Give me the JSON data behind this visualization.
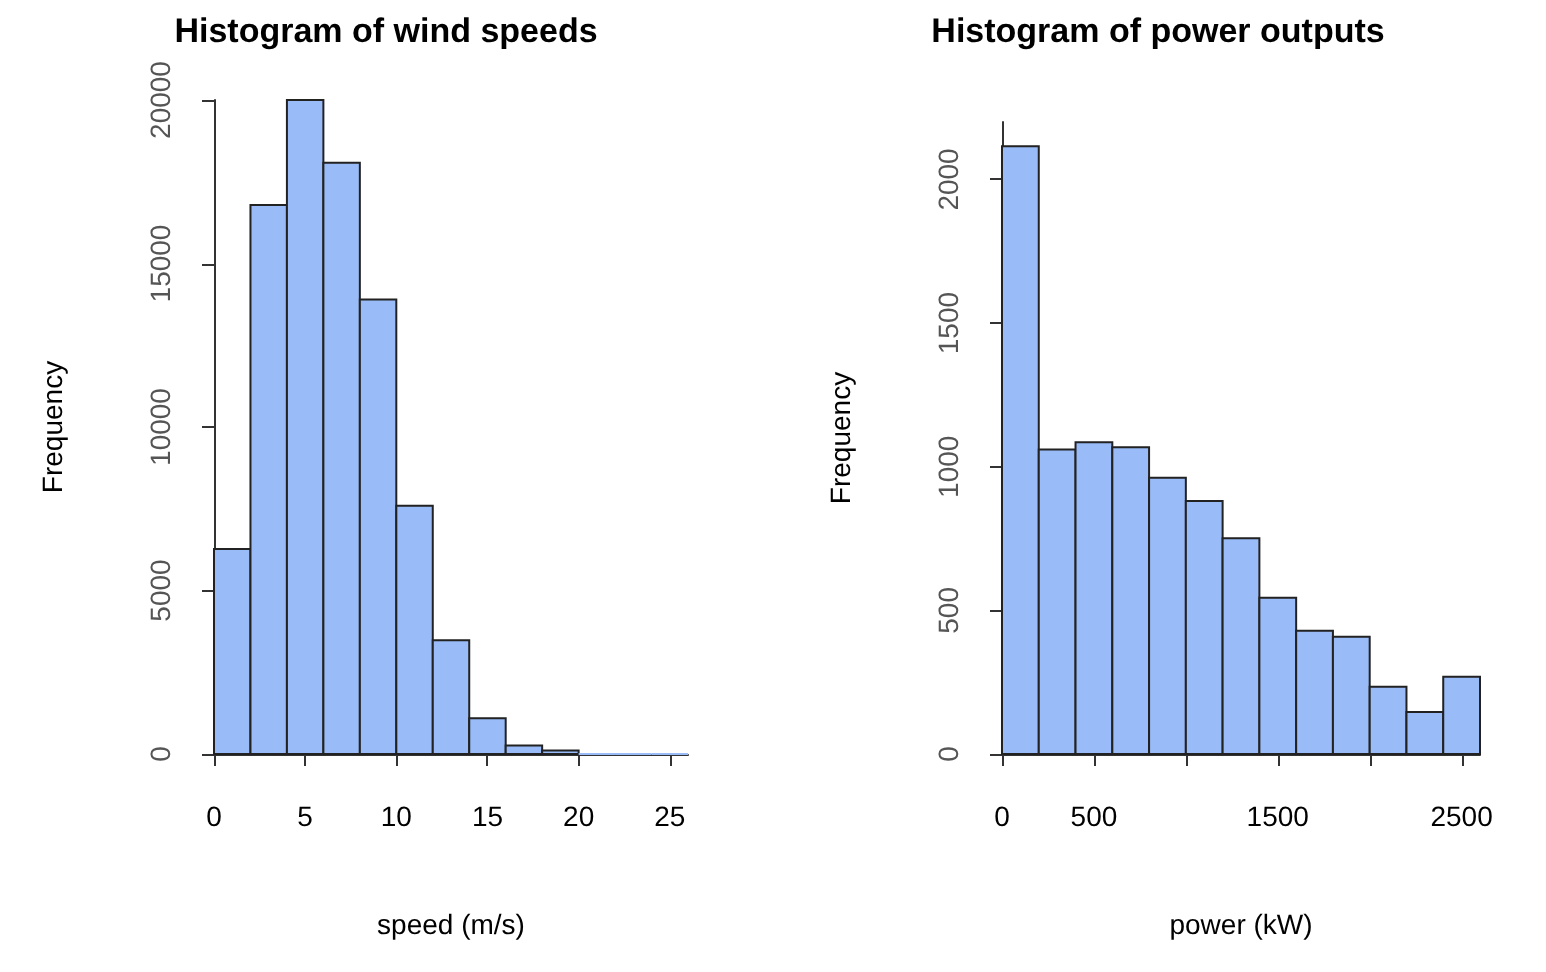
{
  "chart_data": [
    {
      "type": "histogram",
      "title": "Histogram of wind speeds",
      "xlabel": "speed (m/s)",
      "ylabel": "Frequency",
      "color": "#99bbf7",
      "bins": [
        0,
        2,
        4,
        6,
        8,
        10,
        12,
        14,
        16,
        18,
        20,
        22,
        24,
        26
      ],
      "values": [
        6270,
        16790,
        20000,
        18080,
        13900,
        7590,
        3480,
        1090,
        260,
        110,
        0,
        0,
        0
      ],
      "xlim": [
        0,
        26
      ],
      "xticks": [
        0,
        5,
        10,
        15,
        20,
        25
      ],
      "ylim": [
        0,
        20000
      ],
      "yticks": [
        0,
        5000,
        10000,
        15000,
        20000
      ],
      "grid": false
    },
    {
      "type": "histogram",
      "title": "Histogram of power outputs",
      "xlabel": "power (kW)",
      "ylabel": "Frequency",
      "color": "#99bbf7",
      "bins": [
        0,
        200,
        400,
        600,
        800,
        1000,
        1200,
        1400,
        1600,
        1800,
        2000,
        2200,
        2400,
        2600
      ],
      "values": [
        2116,
        1060,
        1085,
        1068,
        962,
        881,
        751,
        544,
        429,
        408,
        234,
        146,
        269
      ],
      "xlim": [
        0,
        2600
      ],
      "xticks": [
        0,
        500,
        {
          "value": 1000,
          "label": null
        },
        1500,
        {
          "value": 2000,
          "label": null
        },
        2500
      ],
      "ylim": [
        0,
        2200
      ],
      "yticks": [
        0,
        500,
        1000,
        1500,
        2000
      ],
      "grid": false
    }
  ]
}
